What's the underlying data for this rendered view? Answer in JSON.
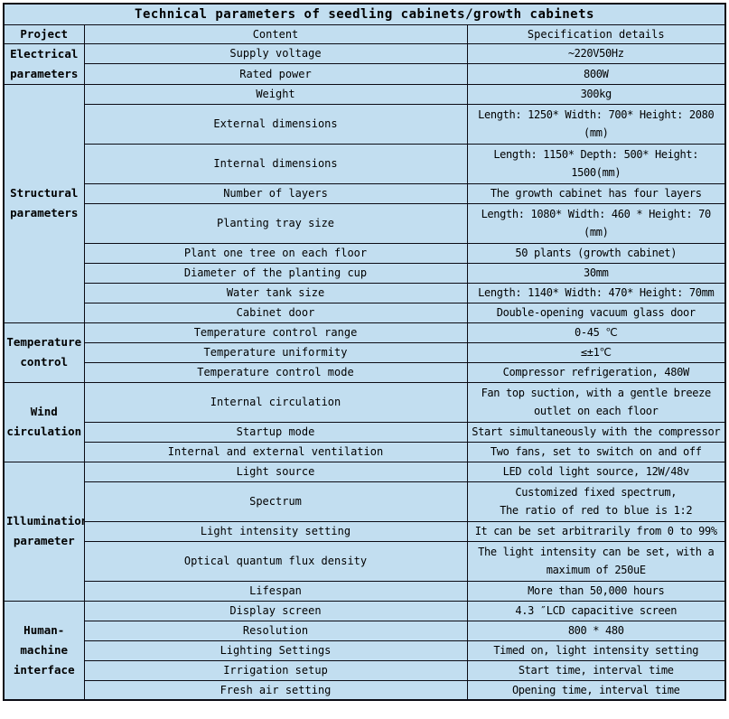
{
  "title": "Technical parameters of seedling cabinets/growth cabinets",
  "columns": {
    "project": "Project",
    "content": "Content",
    "spec": "Specification details"
  },
  "colors": {
    "cell_bg": "#c2def0",
    "border": "#0b0b14",
    "page_bg": "#ffffff",
    "text": "#000000"
  },
  "groups": [
    {
      "label": "Electrical\nparameters",
      "rows": [
        {
          "content": "Supply voltage",
          "spec": "~220V50Hz"
        },
        {
          "content": "Rated power",
          "spec": "800W"
        }
      ]
    },
    {
      "label": "Structural\nparameters",
      "rows": [
        {
          "content": "Weight",
          "spec": "300kg"
        },
        {
          "content": "External dimensions",
          "spec": "Length: 1250* Width: 700* Height: 2080\n(mm)"
        },
        {
          "content": "Internal dimensions",
          "spec": "Length: 1150* Depth: 500* Height:\n1500(mm)"
        },
        {
          "content": "Number of layers",
          "spec": "The growth cabinet has four layers"
        },
        {
          "content": "Planting tray size",
          "spec": "Length: 1080* Width: 460 * Height: 70\n(mm)"
        },
        {
          "content": "Plant one tree on each floor",
          "spec": "50 plants (growth cabinet)"
        },
        {
          "content": "Diameter of the planting cup",
          "spec": "30mm"
        },
        {
          "content": "Water tank size",
          "spec": "Length: 1140* Width: 470* Height: 70mm"
        },
        {
          "content": "Cabinet door",
          "spec": "Double-opening vacuum glass door"
        }
      ]
    },
    {
      "label": "Temperature\ncontrol",
      "rows": [
        {
          "content": "Temperature control range",
          "spec": "0-45 ℃"
        },
        {
          "content": "Temperature uniformity",
          "spec": "≤±1℃"
        },
        {
          "content": "Temperature control mode",
          "spec": "Compressor refrigeration, 480W"
        }
      ]
    },
    {
      "label": "Wind\ncirculation",
      "rows": [
        {
          "content": "Internal circulation",
          "spec": "Fan top suction, with a gentle breeze\noutlet on each floor"
        },
        {
          "content": "Startup mode",
          "spec": "Start simultaneously with the compressor"
        },
        {
          "content": "Internal and external ventilation",
          "spec": "Two fans, set to switch on and off"
        }
      ]
    },
    {
      "label": "Illumination\nparameter",
      "rows": [
        {
          "content": "Light source",
          "spec": "LED cold light source, 12W/48v"
        },
        {
          "content": "Spectrum",
          "spec": "Customized fixed spectrum,\nThe ratio of red to blue is 1:2"
        },
        {
          "content": "Light intensity setting",
          "spec": "It can be set arbitrarily from 0 to 99%"
        },
        {
          "content": "Optical quantum flux density",
          "spec": "The light intensity can be set, with a\nmaximum of 250uE"
        },
        {
          "content": "Lifespan",
          "spec": "More than 50,000 hours"
        }
      ]
    },
    {
      "label": "Human-\nmachine\ninterface",
      "rows": [
        {
          "content": "Display screen",
          "spec": "4.3 ″LCD capacitive screen"
        },
        {
          "content": "Resolution",
          "spec": "800 * 480"
        },
        {
          "content": "Lighting Settings",
          "spec": "Timed on, light intensity setting"
        },
        {
          "content": "Irrigation setup",
          "spec": "Start time, interval time"
        },
        {
          "content": "Fresh air setting",
          "spec": "Opening time, interval time"
        }
      ]
    }
  ]
}
